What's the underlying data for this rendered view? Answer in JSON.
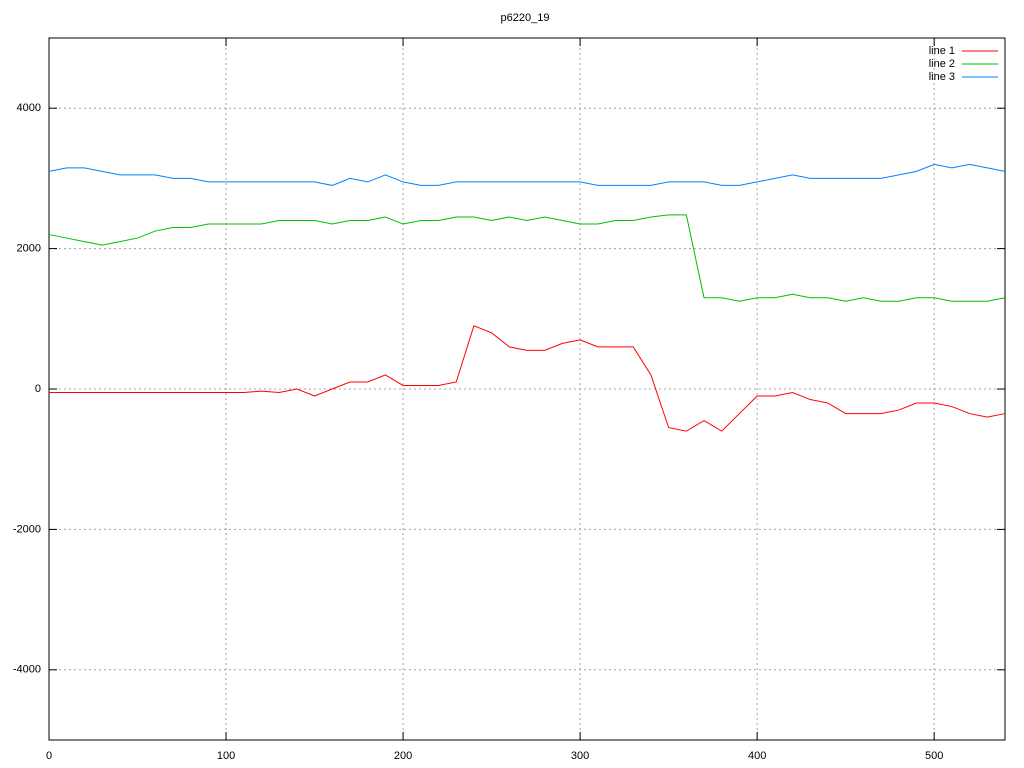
{
  "chart_data": {
    "type": "line",
    "title": "p6220_19",
    "x": [
      0,
      10,
      20,
      30,
      40,
      50,
      60,
      70,
      80,
      90,
      100,
      110,
      120,
      130,
      140,
      150,
      160,
      170,
      180,
      190,
      200,
      210,
      220,
      230,
      240,
      250,
      260,
      270,
      280,
      290,
      300,
      310,
      320,
      330,
      340,
      350,
      360,
      370,
      380,
      390,
      400,
      410,
      420,
      430,
      440,
      450,
      460,
      470,
      480,
      490,
      500,
      510,
      520,
      530,
      540
    ],
    "series": [
      {
        "name": "line 1",
        "color": "#ff0000",
        "values": [
          -50,
          -50,
          -50,
          -50,
          -50,
          -50,
          -50,
          -50,
          -50,
          -50,
          -50,
          -50,
          -30,
          -50,
          0,
          -100,
          0,
          100,
          100,
          200,
          50,
          50,
          50,
          100,
          900,
          800,
          600,
          550,
          550,
          650,
          700,
          600,
          600,
          600,
          200,
          -550,
          -600,
          -450,
          -600,
          -350,
          -100,
          -100,
          -50,
          -150,
          -200,
          -350,
          -350,
          -350,
          -300,
          -200,
          -200,
          -250,
          -350,
          -400,
          -350
        ]
      },
      {
        "name": "line 2",
        "color": "#00c000",
        "values": [
          2200,
          2150,
          2100,
          2050,
          2100,
          2150,
          2250,
          2300,
          2300,
          2350,
          2350,
          2350,
          2350,
          2400,
          2400,
          2400,
          2350,
          2400,
          2400,
          2450,
          2350,
          2400,
          2400,
          2450,
          2450,
          2400,
          2450,
          2400,
          2450,
          2400,
          2350,
          2350,
          2400,
          2400,
          2450,
          2480,
          2480,
          1300,
          1300,
          1250,
          1300,
          1300,
          1350,
          1300,
          1300,
          1250,
          1300,
          1250,
          1250,
          1300,
          1300,
          1250,
          1250,
          1250,
          1300
        ]
      },
      {
        "name": "line 3",
        "color": "#0080ff",
        "values": [
          3100,
          3150,
          3150,
          3100,
          3050,
          3050,
          3050,
          3000,
          3000,
          2950,
          2950,
          2950,
          2950,
          2950,
          2950,
          2950,
          2900,
          3000,
          2950,
          3050,
          2950,
          2900,
          2900,
          2950,
          2950,
          2950,
          2950,
          2950,
          2950,
          2950,
          2950,
          2900,
          2900,
          2900,
          2900,
          2950,
          2950,
          2950,
          2900,
          2900,
          2950,
          3000,
          3050,
          3000,
          3000,
          3000,
          3000,
          3000,
          3050,
          3100,
          3200,
          3150,
          3200,
          3150,
          3100
        ]
      }
    ],
    "xlim": [
      0,
      540
    ],
    "ylim": [
      -5000,
      5000
    ],
    "xticks": [
      0,
      100,
      200,
      300,
      400,
      500
    ],
    "yticks": [
      -4000,
      -2000,
      0,
      2000,
      4000
    ],
    "grid": true,
    "legend": "top-right"
  }
}
